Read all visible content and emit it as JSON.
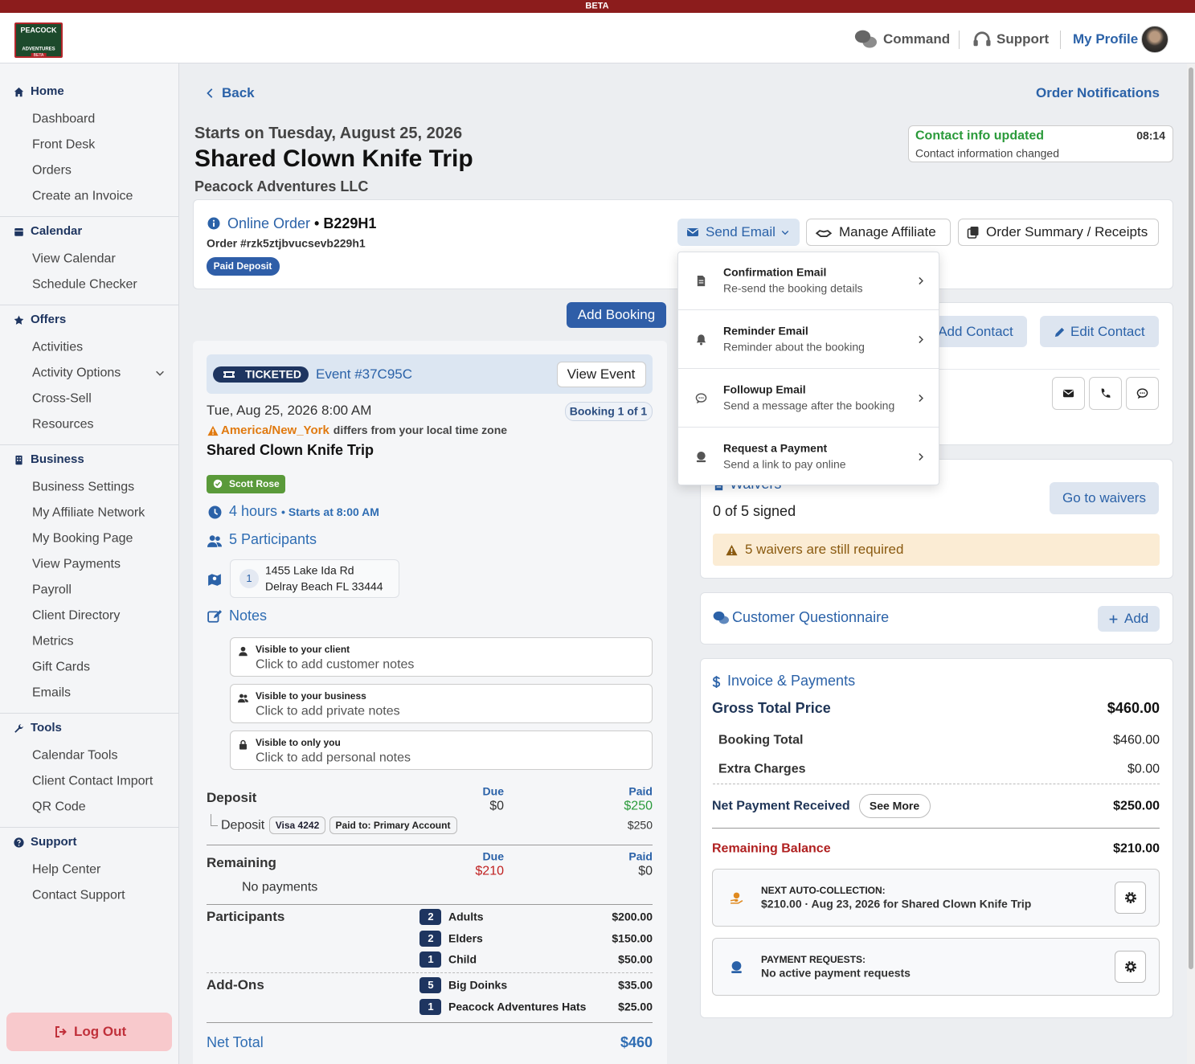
{
  "banner": "BETA",
  "logo": {
    "line1": "PEACOCK",
    "line2": "ADVENTURES",
    "line3": "BETA"
  },
  "topnav": {
    "command": "Command",
    "support": "Support",
    "profile": "My Profile"
  },
  "sidebar": {
    "sections": [
      {
        "title": "Home",
        "items": [
          "Dashboard",
          "Front Desk",
          "Orders",
          "Create an Invoice"
        ]
      },
      {
        "title": "Calendar",
        "items": [
          "View Calendar",
          "Schedule Checker"
        ]
      },
      {
        "title": "Offers",
        "items": [
          "Activities",
          "Activity Options",
          "Cross-Sell",
          "Resources"
        ]
      },
      {
        "title": "Business",
        "items": [
          "Business Settings",
          "My Affiliate Network",
          "My Booking Page",
          "View Payments",
          "Payroll",
          "Client Directory",
          "Metrics",
          "Gift Cards",
          "Emails"
        ]
      },
      {
        "title": "Tools",
        "items": [
          "Calendar Tools",
          "Client Contact Import",
          "QR Code"
        ]
      },
      {
        "title": "Support",
        "items": [
          "Help Center",
          "Contact Support"
        ]
      }
    ],
    "logout": "Log Out"
  },
  "page": {
    "back": "Back",
    "notifications": "Order Notifications",
    "starts": "Starts on Tuesday, August 25, 2026",
    "title": "Shared Clown Knife Trip",
    "company": "Peacock Adventures LLC"
  },
  "toast": {
    "title": "Contact info updated",
    "time": "08:14",
    "text": "Contact information changed"
  },
  "order": {
    "source": "Online Order",
    "code": "• B229H1",
    "number": "Order #rzk5ztjbvucsevb229h1",
    "status": "Paid Deposit",
    "buttons": [
      "Send Email",
      "Manage Affiliate",
      "Order Summary / Receipts"
    ]
  },
  "email_menu": [
    {
      "title": "Confirmation Email",
      "subtitle": "Re-send the booking details"
    },
    {
      "title": "Reminder Email",
      "subtitle": "Reminder about the booking"
    },
    {
      "title": "Followup Email",
      "subtitle": "Send a message after the booking"
    },
    {
      "title": "Request a Payment",
      "subtitle": "Send a link to pay online"
    }
  ],
  "add_booking": "Add Booking",
  "booking": {
    "ticket": "TICKETED",
    "event": "Event #37C95C",
    "view_event": "View Event",
    "datetime": "Tue, Aug 25, 2026 8:00 AM",
    "booking_count": "Booking 1 of 1",
    "timezone": "America/New_York",
    "timezone_note": "differs from your local time zone",
    "activity": "Shared Clown Knife Trip",
    "guide": "Scott Rose",
    "duration": "4 hours",
    "start": "• Starts at 8:00 AM",
    "participants": "5 Participants",
    "location": {
      "index": "1",
      "street": "1455 Lake Ida Rd",
      "city": "Delray Beach FL 33444"
    },
    "notes_title": "Notes",
    "notes": [
      {
        "label": "Visible to your client",
        "placeholder": "Click to add customer notes"
      },
      {
        "label": "Visible to your business",
        "placeholder": "Click to add private notes"
      },
      {
        "label": "Visible to only you",
        "placeholder": "Click to add personal notes"
      }
    ]
  },
  "payments": {
    "deposit": {
      "label": "Deposit",
      "due_label": "Due",
      "due": "$0",
      "paid_label": "Paid",
      "paid": "$250",
      "line": {
        "label": "Deposit",
        "card": "Visa 4242",
        "account": "Paid to: Primary Account",
        "amount": "$250"
      }
    },
    "remaining": {
      "label": "Remaining",
      "due_label": "Due",
      "due": "$210",
      "paid_label": "Paid",
      "paid": "$0",
      "note": "No payments"
    },
    "participants": {
      "label": "Participants",
      "items": [
        {
          "qty": "2",
          "name": "Adults",
          "price": "$200.00"
        },
        {
          "qty": "2",
          "name": "Elders",
          "price": "$150.00"
        },
        {
          "qty": "1",
          "name": "Child",
          "price": "$50.00"
        }
      ]
    },
    "addons": {
      "label": "Add-Ons",
      "items": [
        {
          "qty": "5",
          "name": "Big Doinks",
          "price": "$35.00"
        },
        {
          "qty": "1",
          "name": "Peacock Adventures Hats",
          "price": "$25.00"
        }
      ]
    },
    "net_total": {
      "label": "Net Total",
      "amount": "$460"
    }
  },
  "contact": {
    "add": "Add Contact",
    "edit": "Edit Contact"
  },
  "waivers": {
    "title": "Waivers",
    "status": "0 of 5 signed",
    "button": "Go to waivers",
    "warning": "5 waivers are still required"
  },
  "questionnaire": {
    "title": "Customer Questionnaire",
    "button": "Add"
  },
  "invoice": {
    "title": "Invoice & Payments",
    "gross": {
      "label": "Gross Total Price",
      "amount": "$460.00"
    },
    "booking_total": {
      "label": "Booking Total",
      "amount": "$460.00"
    },
    "extra": {
      "label": "Extra Charges",
      "amount": "$0.00"
    },
    "net": {
      "label": "Net Payment Received",
      "button": "See More",
      "amount": "$250.00"
    },
    "balance": {
      "label": "Remaining Balance",
      "amount": "$210.00"
    },
    "auto": {
      "label": "NEXT AUTO-COLLECTION:",
      "detail": "$210.00 · Aug 23, 2026 for Shared Clown Knife Trip"
    },
    "requests": {
      "label": "PAYMENT REQUESTS:",
      "detail": "No active payment requests"
    }
  }
}
